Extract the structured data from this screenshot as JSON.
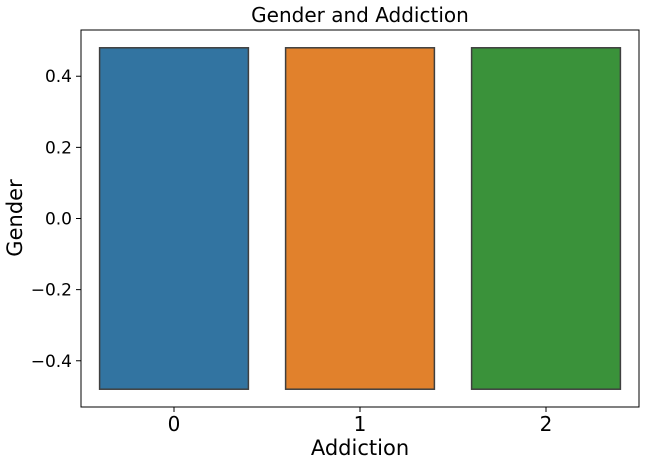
{
  "chart_data": {
    "type": "bar",
    "title": "Gender and Addiction",
    "xlabel": "Addiction",
    "ylabel": "Gender",
    "categories": [
      "0",
      "1",
      "2"
    ],
    "series": [
      {
        "boxes": [
          {
            "category": "0",
            "low": -0.48,
            "high": 0.48,
            "color": "#3274a1"
          },
          {
            "category": "1",
            "low": -0.48,
            "high": 0.48,
            "color": "#e1812c"
          },
          {
            "category": "2",
            "low": -0.48,
            "high": 0.48,
            "color": "#3a923a"
          }
        ]
      }
    ],
    "ylim": [
      -0.53,
      0.53
    ],
    "yticks": [
      0.4,
      0.2,
      0.0,
      -0.2,
      -0.4
    ],
    "ytick_labels": [
      "0.4",
      "0.2",
      "0.0",
      "−0.2",
      "−0.4"
    ],
    "grid": false,
    "legend": "none"
  }
}
